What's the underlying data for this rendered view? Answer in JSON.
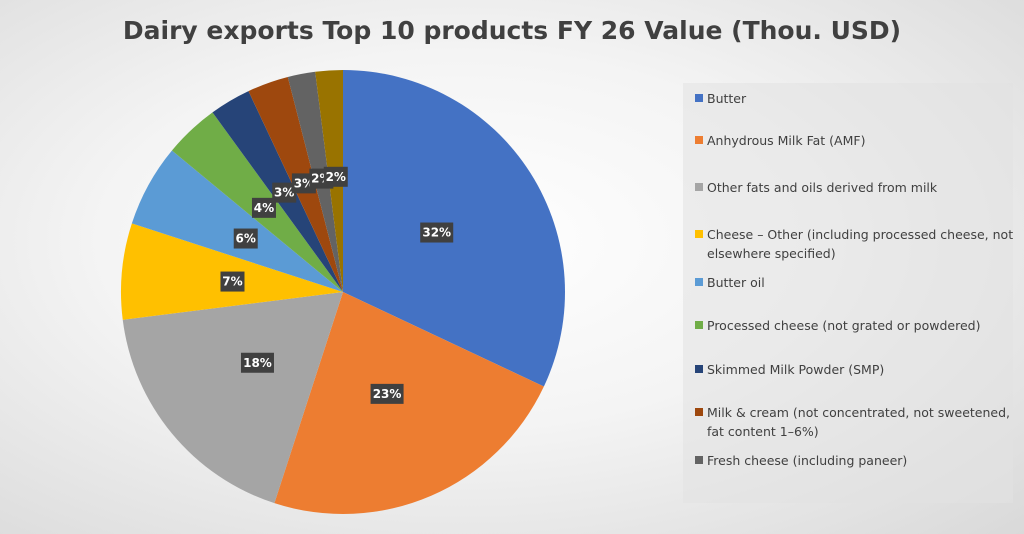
{
  "chart_data": {
    "type": "pie",
    "title": "Dairy exports Top 10 products FY 26 Value (Thou. USD)",
    "categories": [
      "Butter",
      "Anhydrous Milk Fat (AMF)",
      "Other fats and oils derived from milk",
      "Cheese – Other (including processed cheese, not elsewhere specified)",
      "Butter oil",
      "Processed cheese (not grated or powdered)",
      "Skimmed Milk Powder (SMP)",
      "Milk & cream (not concentrated, not sweetened, fat content 1–6%)",
      "Fresh cheese (including paneer)",
      ""
    ],
    "values": [
      32,
      23,
      18,
      7,
      6,
      4,
      3,
      3,
      2,
      2
    ],
    "data_labels": [
      "32%",
      "23%",
      "18%",
      "7%",
      "6%",
      "4%",
      "3%",
      "3%",
      "2%",
      "2%"
    ],
    "colors": [
      "#4472c4",
      "#ed7d31",
      "#a5a5a5",
      "#ffc000",
      "#5b9bd5",
      "#70ad47",
      "#264478",
      "#9e480e",
      "#636363",
      "#997300"
    ],
    "legend_position": "right",
    "unit": "percent"
  }
}
